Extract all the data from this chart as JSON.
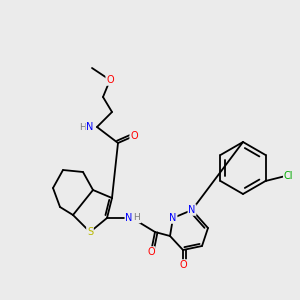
{
  "background_color": "#ebebeb",
  "bond_color": "#000000",
  "figsize": [
    3.0,
    3.0
  ],
  "dpi": 100,
  "atom_colors": {
    "S": "#b8b800",
    "O": "#ff0000",
    "N": "#0000ff",
    "H": "#7a7a7a",
    "Cl": "#00aa00"
  }
}
